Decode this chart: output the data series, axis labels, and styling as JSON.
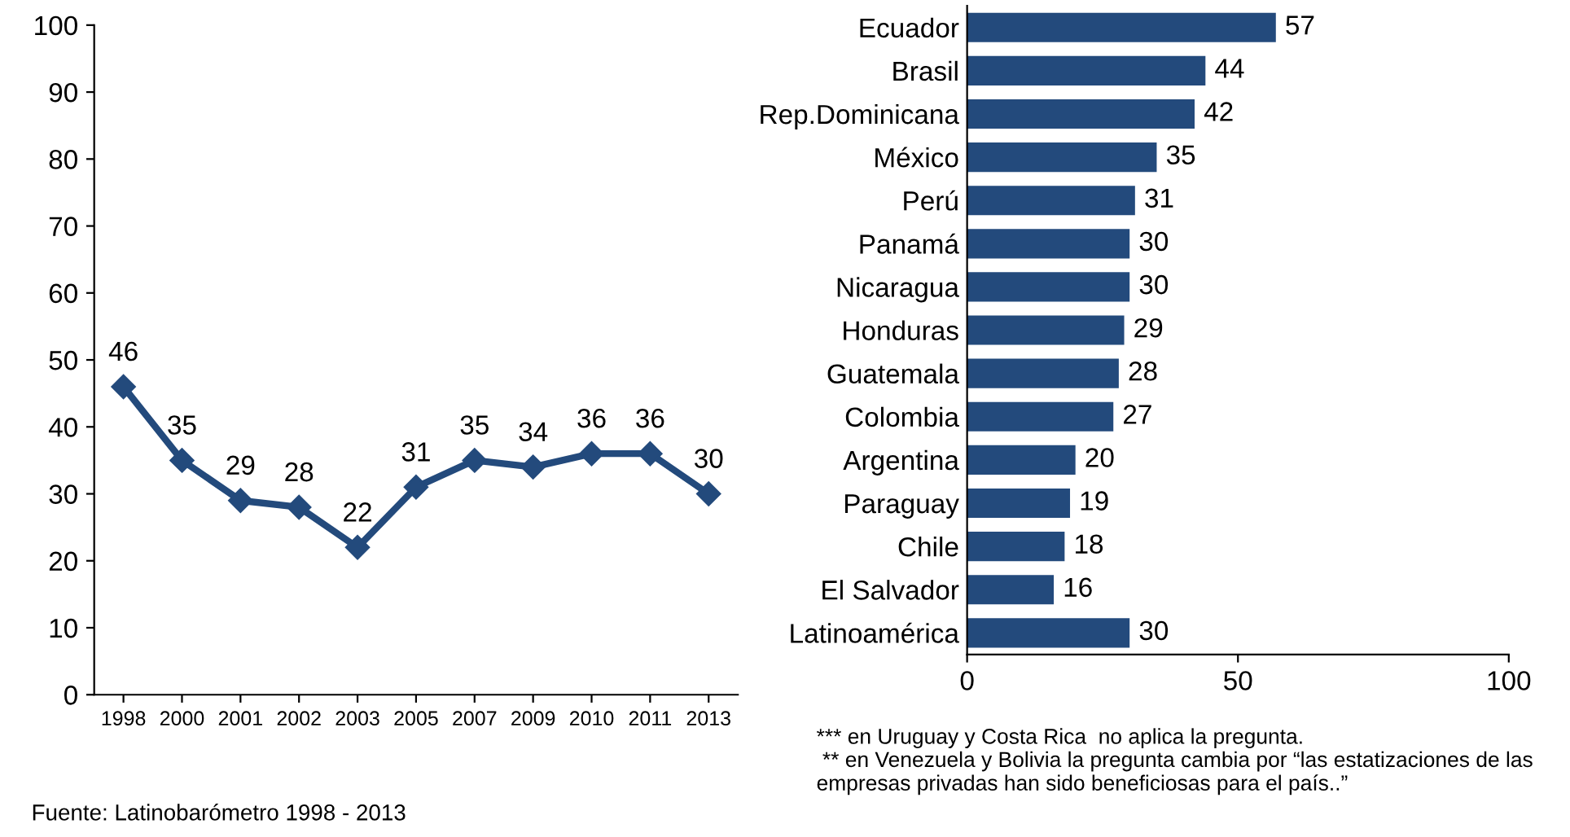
{
  "chart_data": [
    {
      "type": "line",
      "categories": [
        "1998",
        "2000",
        "2001",
        "2002",
        "2003",
        "2005",
        "2007",
        "2009",
        "2010",
        "2011",
        "2013"
      ],
      "series": [
        {
          "color": "#234a7c",
          "values": [
            46,
            35,
            29,
            28,
            22,
            31,
            35,
            34,
            36,
            36,
            30
          ]
        }
      ],
      "ylim": [
        0,
        100
      ],
      "yticks": [
        0,
        10,
        20,
        30,
        40,
        50,
        60,
        70,
        80,
        90,
        100
      ],
      "grid": false,
      "marker": "diamond",
      "line_style": "solid",
      "data_labels": true,
      "annotations": [
        "Fuente: Latinobarómetro 1998 - 2013"
      ]
    },
    {
      "type": "bar",
      "orientation": "horizontal",
      "categories": [
        "Ecuador",
        "Brasil",
        "Rep.Dominicana",
        "México",
        "Perú",
        "Panamá",
        "Nicaragua",
        "Honduras",
        "Guatemala",
        "Colombia",
        "Argentina",
        "Paraguay",
        "Chile",
        "El Salvador",
        "Latinoamérica"
      ],
      "series": [
        {
          "color": "#234a7c",
          "values": [
            57,
            44,
            42,
            35,
            31,
            30,
            30,
            29,
            28,
            27,
            20,
            19,
            18,
            16,
            30
          ]
        }
      ],
      "xlim": [
        0,
        100
      ],
      "xticks": [
        0,
        50,
        100
      ],
      "grid": false,
      "data_labels": true,
      "annotations": [
        "*** en Uruguay y Costa Rica  no aplica la pregunta.",
        " ** en Venezuela y Bolivia la pregunta cambia por “las estatizaciones de las empresas privadas han sido beneficiosas para el país..”"
      ]
    }
  ]
}
